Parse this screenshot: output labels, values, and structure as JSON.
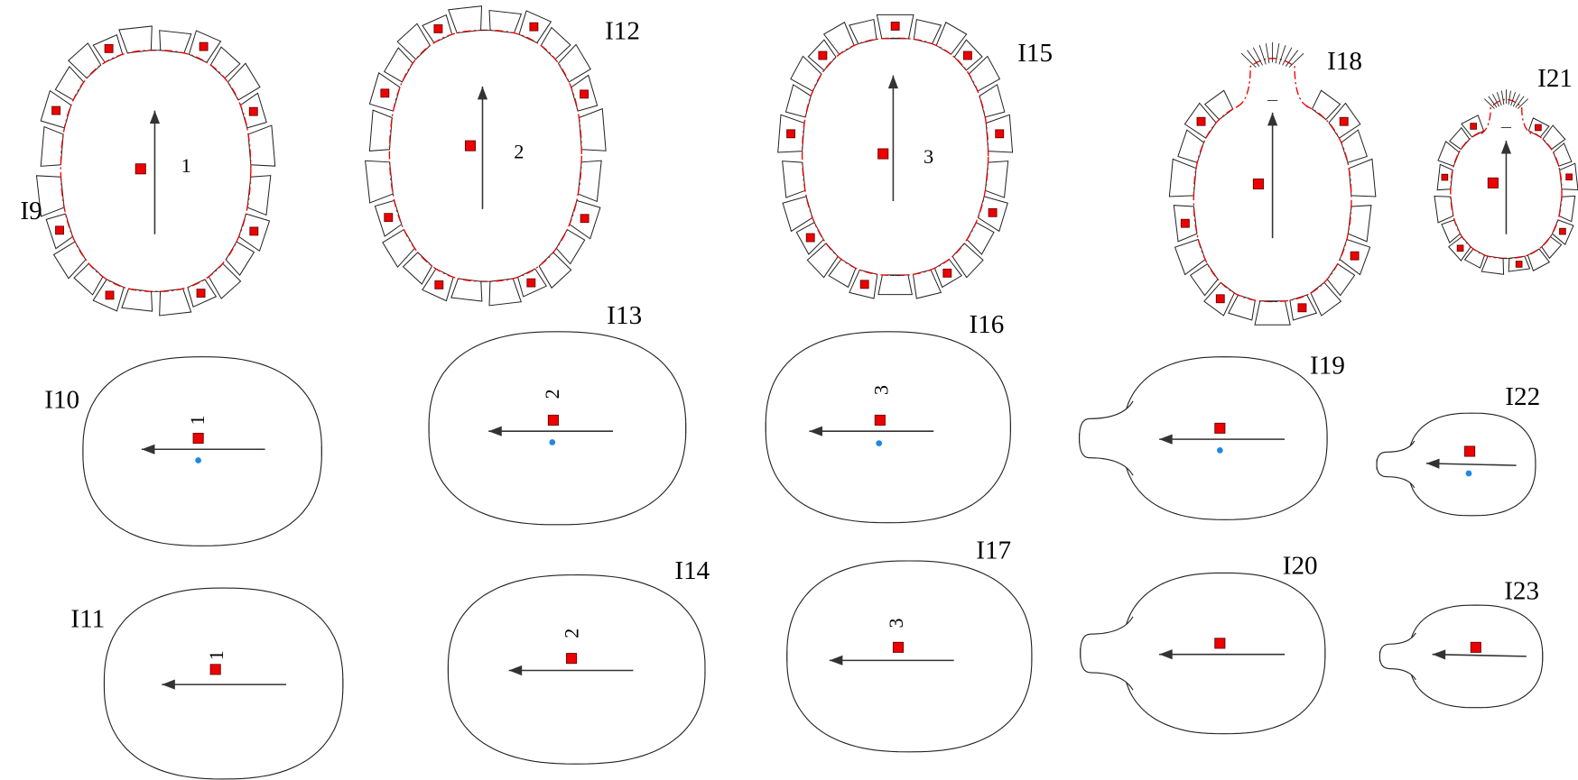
{
  "panels": [
    {
      "label": "I9",
      "number": "1"
    },
    {
      "label": "I10",
      "number": "1"
    },
    {
      "label": "I11",
      "number": "1"
    },
    {
      "label": "I12",
      "number": "2"
    },
    {
      "label": "I13",
      "number": "2"
    },
    {
      "label": "I14",
      "number": "2"
    },
    {
      "label": "I15",
      "number": "3"
    },
    {
      "label": "I16",
      "number": "3"
    },
    {
      "label": "I17",
      "number": "3"
    },
    {
      "label": "I18"
    },
    {
      "label": "I19"
    },
    {
      "label": "I20"
    },
    {
      "label": "I21"
    },
    {
      "label": "I22"
    },
    {
      "label": "I23"
    }
  ]
}
